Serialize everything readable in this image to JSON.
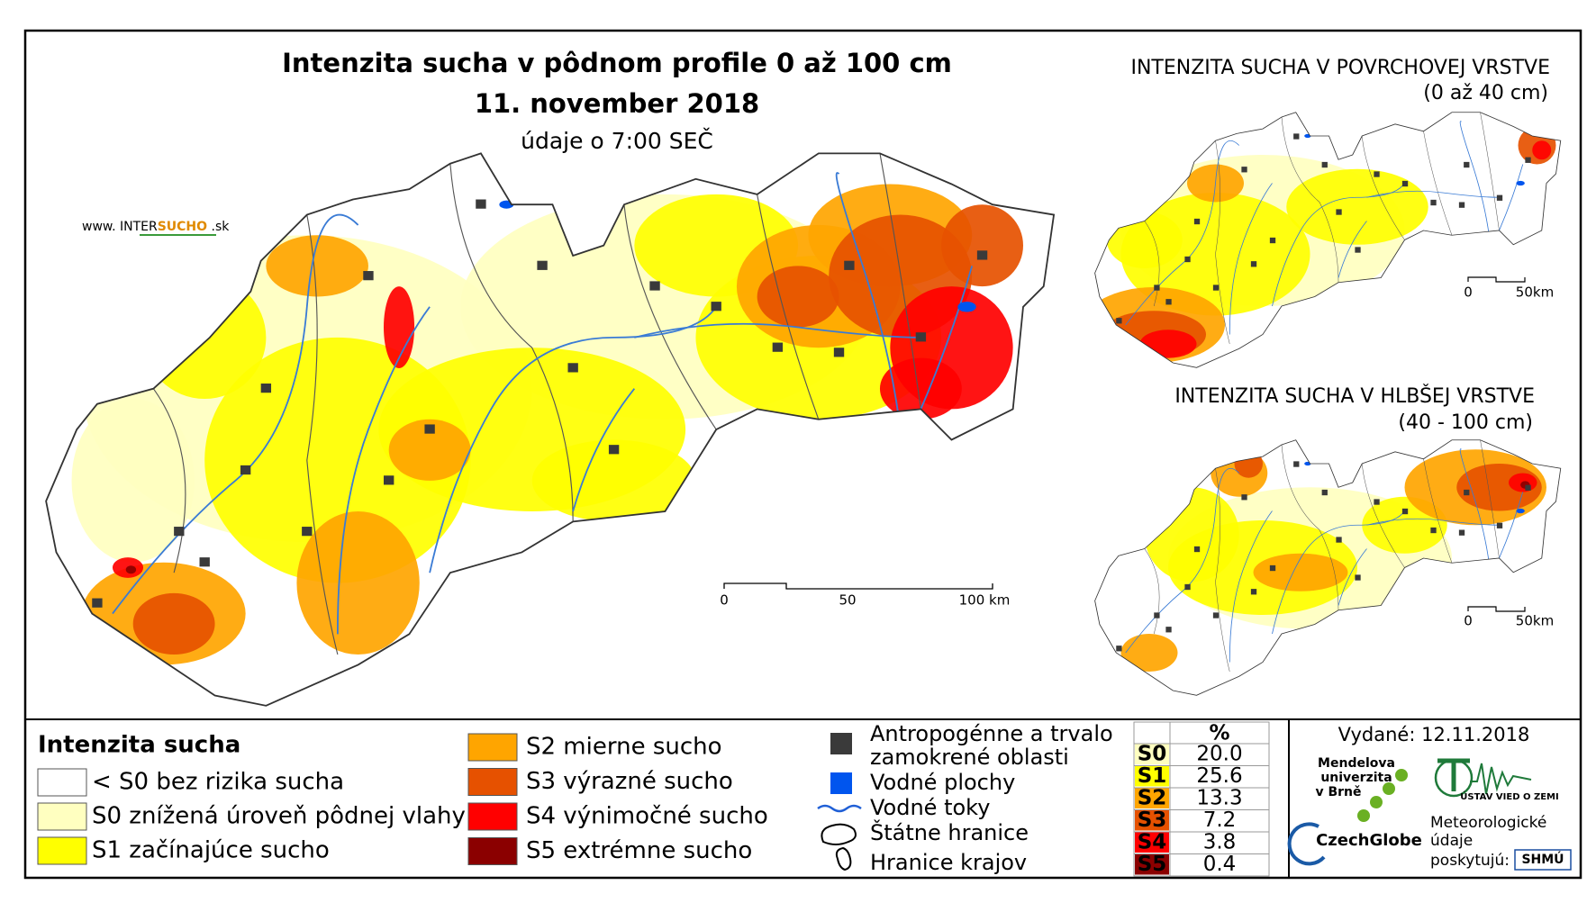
{
  "title": "Intenzita sucha v pôdnom profile 0 až 100 cm",
  "date": "11. november 2018",
  "time_note": "údaje o 7:00 SEČ",
  "website": {
    "prefix": "www. INTER",
    "highlight": "SUCHO",
    "suffix": " .sk"
  },
  "main_scale": [
    "0",
    "50",
    "100 km"
  ],
  "insets": [
    {
      "title": "INTENZITA SUCHA V POVRCHOVEJ VRSTVE",
      "subtitle": "(0 až 40 cm)",
      "scale": [
        "0",
        "50km"
      ]
    },
    {
      "title": "INTENZITA SUCHA V HLBŠEJ VRSTVE",
      "subtitle": "(40 - 100 cm)",
      "scale": [
        "0",
        "50km"
      ]
    }
  ],
  "legend": {
    "title": "Intenzita sucha",
    "items": [
      {
        "label": "< S0 bez rizika sucha",
        "color": "#ffffff"
      },
      {
        "label": "S0 znížená úroveň pôdnej vlahy",
        "color": "#ffffc0"
      },
      {
        "label": "S1 začínajúce sucho",
        "color": "#ffff00"
      },
      {
        "label": "S2 mierne sucho",
        "color": "#ffa500"
      },
      {
        "label": "S3 výrazné sucho",
        "color": "#e65100"
      },
      {
        "label": "S4 výnimočné sucho",
        "color": "#ff0000"
      },
      {
        "label": "S5 extrémne sucho",
        "color": "#8b0000"
      }
    ]
  },
  "layers": {
    "anthropogenic": [
      "Antropogénne a trvalo",
      "zamokrené oblasti"
    ],
    "water_bodies": "Vodné plochy",
    "rivers": "Vodné toky",
    "state_border": "Štátne hranice",
    "region_border": "Hranice krajov"
  },
  "stats": {
    "header": "%",
    "rows": [
      [
        "S0",
        "20.0"
      ],
      [
        "S1",
        "25.6"
      ],
      [
        "S2",
        "13.3"
      ],
      [
        "S3",
        "7.2"
      ],
      [
        "S4",
        "3.8"
      ],
      [
        "S5",
        "0.4"
      ]
    ]
  },
  "issued": "Vydané: 12.11.2018",
  "logos": {
    "mendel": [
      "Mendelova",
      "univerzita",
      "v Brně"
    ],
    "czechglobe": "CzechGlobe",
    "ustav": "ÚSTAV VIED O ZEMI",
    "provider": [
      "Meteorologické",
      "údaje",
      "poskytujú:"
    ],
    "shmu": "SHMÚ"
  }
}
